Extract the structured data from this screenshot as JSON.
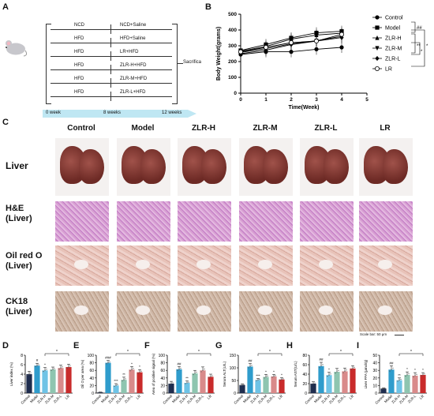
{
  "panels": {
    "a": "A",
    "b": "B",
    "c": "C",
    "d": "D",
    "e": "E",
    "f": "F",
    "g": "G",
    "h": "H",
    "i": "I"
  },
  "schema": {
    "groups": [
      {
        "diet": "NCD",
        "treatment": "NCD+Saline"
      },
      {
        "diet": "HFD",
        "treatment": "HFD+Saline"
      },
      {
        "diet": "HFD",
        "treatment": "LR+HFD"
      },
      {
        "diet": "HFD",
        "treatment": "ZLR-H+HFD"
      },
      {
        "diet": "HFD",
        "treatment": "ZLR-M+HFD"
      },
      {
        "diet": "HFD",
        "treatment": "ZLR-L+HFD"
      }
    ],
    "endpoint": "Sacrifica",
    "timeline": {
      "start": "0 week",
      "mid": "8 weeks",
      "end": "12 weeks"
    }
  },
  "histology": {
    "columns": [
      "Control",
      "Model",
      "ZLR-H",
      "ZLR-M",
      "ZLR-L",
      "LR"
    ],
    "rows": {
      "liver": "Liver",
      "he_a": "H&E",
      "he_b": "(Liver)",
      "oil_a": "Oil red O",
      "oil_b": "(Liver)",
      "ck_a": "CK18",
      "ck_b": "(Liver)"
    },
    "scale_bar": "Scale bar: 50 μm"
  },
  "chart_data": [
    {
      "id": "B",
      "type": "line",
      "xlabel": "Time(Week)",
      "ylabel": "Body Weight(grams)",
      "xlim": [
        0,
        5
      ],
      "ylim": [
        0,
        500
      ],
      "xticks": [
        0,
        1,
        2,
        3,
        4,
        5
      ],
      "yticks": [
        0,
        100,
        200,
        300,
        400,
        500
      ],
      "x": [
        0,
        1,
        2,
        3,
        4
      ],
      "series": [
        {
          "name": "Control",
          "marker": "circle",
          "values": [
            245,
            262,
            262,
            278,
            290
          ]
        },
        {
          "name": "Model",
          "marker": "square",
          "values": [
            270,
            308,
            350,
            382,
            392
          ]
        },
        {
          "name": "ZLR-H",
          "marker": "triangle-up",
          "values": [
            265,
            296,
            342,
            368,
            380
          ]
        },
        {
          "name": "ZLR-M",
          "marker": "triangle-down",
          "values": [
            258,
            282,
            312,
            332,
            360
          ]
        },
        {
          "name": "ZLR-L",
          "marker": "diamond",
          "values": [
            250,
            272,
            308,
            330,
            352
          ]
        },
        {
          "name": "LR",
          "marker": "open-circle",
          "values": [
            262,
            290,
            320,
            330,
            372
          ]
        }
      ],
      "significance": [
        "##",
        "**",
        "*",
        "*"
      ]
    },
    {
      "id": "D",
      "type": "bar",
      "ylabel": "Liver index (%)",
      "ylim": [
        0,
        8
      ],
      "yticks": [
        0,
        2,
        4,
        6,
        8
      ],
      "categories": [
        "Control",
        "Model",
        "ZLR-H",
        "ZLR-M",
        "ZLR-L",
        "LR"
      ],
      "values": [
        4.0,
        5.8,
        4.8,
        5.0,
        5.3,
        5.5
      ],
      "errors": [
        0.6,
        0.5,
        0.6,
        0.5,
        0.6,
        0.6
      ],
      "labels": [
        "",
        "#",
        "*",
        "",
        "",
        ""
      ],
      "bracket": "*"
    },
    {
      "id": "E",
      "type": "bar",
      "ylabel": "Oil O per area (%)",
      "ylim": [
        0,
        100
      ],
      "yticks": [
        0,
        20,
        40,
        60,
        80,
        100
      ],
      "categories": [
        "Control",
        "Model",
        "ZLR-H",
        "ZLR-M",
        "ZLR-L",
        "LR"
      ],
      "values": [
        2,
        80,
        20,
        35,
        62,
        55
      ],
      "errors": [
        1,
        6,
        5,
        7,
        8,
        7
      ],
      "labels": [
        "",
        "###",
        "***",
        "**",
        "*",
        "*"
      ],
      "bracket": "*"
    },
    {
      "id": "F",
      "type": "bar",
      "ylabel": "Area of positive signal (%)",
      "ylim": [
        0,
        100
      ],
      "yticks": [
        0,
        20,
        40,
        60,
        80,
        100
      ],
      "categories": [
        "Control",
        "Model",
        "ZLR-H",
        "ZLR-M",
        "ZLR-L",
        "LR"
      ],
      "values": [
        25,
        63,
        27,
        52,
        60,
        43
      ],
      "errors": [
        6,
        7,
        5,
        8,
        9,
        7
      ],
      "labels": [
        "",
        "##",
        "**",
        "",
        "",
        ""
      ],
      "bracket": "*"
    },
    {
      "id": "G",
      "type": "bar",
      "ylabel": "Serum ALT(U/L)",
      "ylim": [
        0,
        150
      ],
      "yticks": [
        0,
        50,
        100,
        150
      ],
      "categories": [
        "Control",
        "Model",
        "ZLR-H",
        "ZLR-M",
        "ZLR-L",
        "LR"
      ],
      "values": [
        32,
        105,
        52,
        64,
        66,
        54
      ],
      "errors": [
        5,
        12,
        6,
        10,
        8,
        7
      ],
      "labels": [
        "",
        "##",
        "***",
        "*",
        "*",
        "*"
      ],
      "bracket": "*"
    },
    {
      "id": "H",
      "type": "bar",
      "ylabel": "Serum AST(U/L)",
      "ylim": [
        0,
        80
      ],
      "yticks": [
        0,
        20,
        40,
        60,
        80
      ],
      "categories": [
        "Control",
        "Model",
        "ZLR-H",
        "ZLR-M",
        "ZLR-L",
        "LR"
      ],
      "values": [
        20,
        57,
        38,
        45,
        46,
        52
      ],
      "errors": [
        4,
        8,
        6,
        7,
        7,
        6
      ],
      "labels": [
        "",
        "##",
        "*",
        "",
        "",
        ""
      ],
      "bracket": "*"
    },
    {
      "id": "I",
      "type": "bar",
      "ylabel": "Liver FFA (μmol/g)",
      "ylim": [
        0,
        50
      ],
      "yticks": [
        0,
        10,
        20,
        30,
        40,
        50
      ],
      "categories": [
        "Control",
        "Model",
        "ZLR-H",
        "ZLR-M",
        "ZLR-L",
        "LR"
      ],
      "values": [
        6,
        31,
        17,
        24,
        23,
        24
      ],
      "errors": [
        1,
        5,
        3,
        4,
        4,
        3
      ],
      "labels": [
        "",
        "##",
        "**",
        "*",
        "*",
        "*"
      ],
      "bracket": "*"
    }
  ]
}
